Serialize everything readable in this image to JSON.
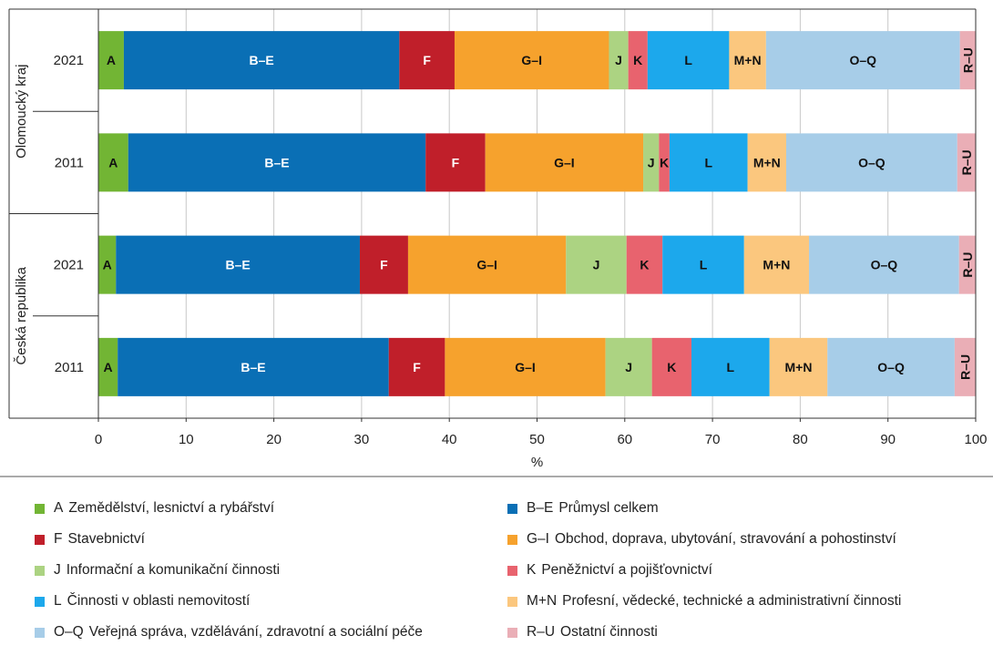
{
  "chart_data": {
    "type": "bar",
    "orientation": "horizontal",
    "stacked": true,
    "xlabel": "%",
    "xlim": [
      0,
      100
    ],
    "xticks": [
      0,
      10,
      20,
      30,
      40,
      50,
      60,
      70,
      80,
      90,
      100
    ],
    "grid": "vertical",
    "groups": [
      {
        "name": "Olomoucký kraj",
        "categories": [
          "2021",
          "2011"
        ]
      },
      {
        "name": "Česká republika",
        "categories": [
          "2021",
          "2011"
        ]
      }
    ],
    "categories": [
      "Olomoucký kraj 2021",
      "Olomoucký kraj 2011",
      "Česká republika 2021",
      "Česká republika 2011"
    ],
    "row_labels": [
      "2021",
      "2011",
      "2021",
      "2011"
    ],
    "series": [
      {
        "code": "A",
        "name": "Zemědělství, lesnictví a rybářství",
        "color": "#72b534",
        "label_color": "#111111",
        "values": [
          2.9,
          3.4,
          2.0,
          2.2
        ]
      },
      {
        "code": "B–E",
        "name": "Průmysl celkem",
        "color": "#0a6fb5",
        "label_color": "#ffffff",
        "values": [
          31.4,
          33.9,
          27.8,
          30.9
        ]
      },
      {
        "code": "F",
        "name": "Stavebnictví",
        "color": "#c01f2a",
        "label_color": "#ffffff",
        "values": [
          6.3,
          6.8,
          5.5,
          6.4
        ]
      },
      {
        "code": "G–I",
        "name": "Obchod, doprava, ubytování, stravování a pohostinství",
        "color": "#f6a22d",
        "label_color": "#111111",
        "values": [
          17.6,
          18.0,
          18.0,
          18.3
        ]
      },
      {
        "code": "J",
        "name": "Informační a komunikační činnosti",
        "color": "#acd382",
        "label_color": "#111111",
        "values": [
          2.2,
          1.8,
          6.9,
          5.3
        ]
      },
      {
        "code": "K",
        "name": "Peněžnictví a pojišťovnictví",
        "color": "#e8636e",
        "label_color": "#111111",
        "values": [
          2.2,
          1.2,
          4.1,
          4.5
        ]
      },
      {
        "code": "L",
        "name": "Činnosti v oblasti nemovitostí",
        "color": "#1ca8ec",
        "label_color": "#111111",
        "values": [
          9.3,
          8.9,
          9.3,
          8.9
        ]
      },
      {
        "code": "M+N",
        "name": "Profesní, vědecké, technické a administrativní činnosti",
        "color": "#fbc77e",
        "label_color": "#111111",
        "values": [
          4.2,
          4.4,
          7.4,
          6.6
        ]
      },
      {
        "code": "O–Q",
        "name": "Veřejná správa, vzdělávání, zdravotní a sociální péče",
        "color": "#a7cde8",
        "label_color": "#111111",
        "values": [
          22.1,
          19.5,
          17.1,
          14.5
        ]
      },
      {
        "code": "R–U",
        "name": "Ostatní činnosti",
        "color": "#eaaeb6",
        "label_color": "#111111",
        "values": [
          1.8,
          2.1,
          1.9,
          2.4
        ]
      }
    ],
    "legend": {
      "position": "bottom",
      "left_column": [
        "A",
        "F",
        "J",
        "L",
        "O–Q"
      ],
      "right_column": [
        "B–E",
        "G–I",
        "K",
        "M+N",
        "R–U"
      ]
    }
  }
}
